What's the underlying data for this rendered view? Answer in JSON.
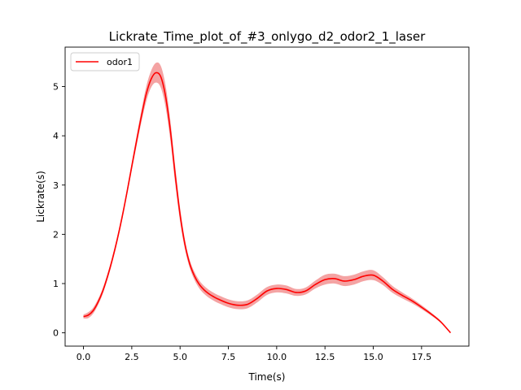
{
  "chart_data": {
    "type": "line",
    "title": "Lickrate_Time_plot_of_#3_onlygo_d2_odor2_1_laser",
    "xlabel": "Time(s)",
    "ylabel": "Lickrate(s)",
    "xlim": [
      -0.95,
      19.95
    ],
    "ylim": [
      -0.27,
      5.8
    ],
    "xticks": [
      0.0,
      2.5,
      5.0,
      7.5,
      10.0,
      12.5,
      15.0,
      17.5
    ],
    "yticks": [
      0,
      1,
      2,
      3,
      4,
      5
    ],
    "grid": false,
    "legend": {
      "position": "top-left"
    },
    "series": [
      {
        "name": "odor1",
        "color": "#ff0000",
        "band_color": "#f4a3a3",
        "x": [
          0.0,
          0.25,
          0.5,
          0.75,
          1.0,
          1.25,
          1.5,
          1.75,
          2.0,
          2.25,
          2.5,
          2.75,
          3.0,
          3.25,
          3.5,
          3.75,
          4.0,
          4.25,
          4.5,
          4.75,
          5.0,
          5.25,
          5.5,
          5.75,
          6.0,
          6.25,
          6.5,
          6.75,
          7.0,
          7.5,
          8.0,
          8.5,
          9.0,
          9.5,
          10.0,
          10.5,
          11.0,
          11.5,
          12.0,
          12.5,
          13.0,
          13.5,
          14.0,
          14.5,
          15.0,
          15.5,
          16.0,
          16.5,
          17.0,
          17.5,
          18.0,
          18.5,
          19.0
        ],
        "mean": [
          0.33,
          0.36,
          0.45,
          0.62,
          0.85,
          1.15,
          1.5,
          1.9,
          2.35,
          2.85,
          3.38,
          3.9,
          4.4,
          4.85,
          5.15,
          5.28,
          5.2,
          4.8,
          4.1,
          3.2,
          2.4,
          1.8,
          1.4,
          1.15,
          0.98,
          0.87,
          0.79,
          0.73,
          0.68,
          0.6,
          0.56,
          0.58,
          0.7,
          0.85,
          0.9,
          0.88,
          0.82,
          0.85,
          0.98,
          1.08,
          1.1,
          1.05,
          1.08,
          1.15,
          1.17,
          1.05,
          0.88,
          0.76,
          0.65,
          0.52,
          0.38,
          0.22,
          0.0
        ],
        "lower": [
          0.29,
          0.3,
          0.39,
          0.56,
          0.79,
          1.09,
          1.44,
          1.84,
          2.29,
          2.79,
          3.3,
          3.8,
          4.28,
          4.7,
          4.98,
          5.08,
          4.98,
          4.58,
          3.9,
          3.02,
          2.26,
          1.7,
          1.32,
          1.07,
          0.9,
          0.79,
          0.71,
          0.65,
          0.6,
          0.52,
          0.48,
          0.5,
          0.62,
          0.77,
          0.82,
          0.8,
          0.75,
          0.78,
          0.9,
          0.98,
          1.0,
          0.95,
          0.98,
          1.05,
          1.07,
          0.97,
          0.81,
          0.7,
          0.6,
          0.48,
          0.35,
          0.2,
          0.0
        ],
        "upper": [
          0.37,
          0.42,
          0.51,
          0.68,
          0.91,
          1.21,
          1.56,
          1.96,
          2.41,
          2.91,
          3.46,
          4.0,
          4.52,
          5.0,
          5.32,
          5.48,
          5.42,
          5.02,
          4.3,
          3.38,
          2.54,
          1.9,
          1.48,
          1.23,
          1.06,
          0.95,
          0.87,
          0.81,
          0.76,
          0.68,
          0.64,
          0.66,
          0.78,
          0.93,
          0.98,
          0.96,
          0.89,
          0.92,
          1.06,
          1.18,
          1.2,
          1.15,
          1.18,
          1.25,
          1.27,
          1.13,
          0.95,
          0.82,
          0.7,
          0.56,
          0.41,
          0.24,
          0.0
        ]
      }
    ]
  }
}
